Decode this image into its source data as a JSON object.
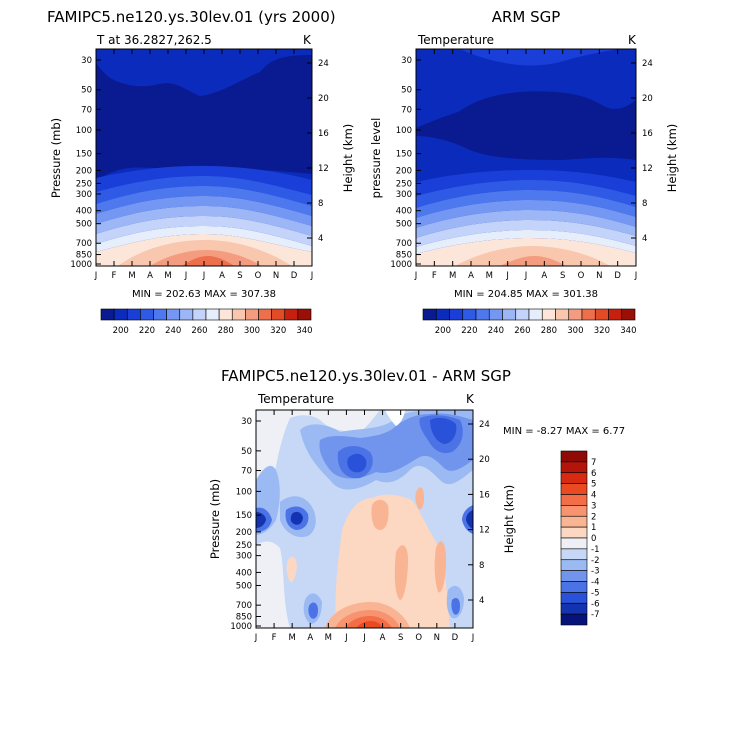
{
  "chart_data": [
    {
      "type": "heatmap",
      "title": "FAMIPC5.ne120.ys.30lev.01 (yrs 2000)",
      "subtitle_left": "T at 36.2827,262.5",
      "subtitle_right": "K",
      "ylabel": "Pressure (mb)",
      "y2label": "Height (km)",
      "x_ticks": [
        "J",
        "F",
        "M",
        "A",
        "M",
        "J",
        "J",
        "A",
        "S",
        "O",
        "N",
        "D",
        "J"
      ],
      "p_ticks": [
        "30",
        "50",
        "70",
        "100",
        "150",
        "200",
        "250",
        "300",
        "400",
        "500",
        "700",
        "850",
        "1000"
      ],
      "p_values": [
        30,
        50,
        70,
        100,
        150,
        200,
        250,
        300,
        400,
        500,
        700,
        850,
        1000
      ],
      "h_ticks": [
        "24",
        "20",
        "16",
        "12",
        "8",
        "4"
      ],
      "min_max": "MIN = 202.63  MAX = 307.38",
      "colorbar": {
        "labels": [
          "200",
          "220",
          "240",
          "260",
          "280",
          "300",
          "320",
          "340"
        ],
        "colors": [
          "#0a1a90",
          "#0b2bbd",
          "#1a3fd8",
          "#2f5ae6",
          "#4d78ee",
          "#7397f2",
          "#9cb6f6",
          "#c3d3fa",
          "#e6eefc",
          "#fce6da",
          "#f9c6ae",
          "#f49c7f",
          "#ee6f4c",
          "#e34a26",
          "#c8200f",
          "#9a1006"
        ]
      }
    },
    {
      "type": "heatmap",
      "title": "ARM SGP",
      "subtitle_left": "Temperature",
      "subtitle_right": "K",
      "ylabel": "pressure level",
      "y2label": "Height (km)",
      "x_ticks": [
        "J",
        "F",
        "M",
        "A",
        "M",
        "J",
        "J",
        "A",
        "S",
        "O",
        "N",
        "D",
        "J"
      ],
      "p_ticks": [
        "30",
        "50",
        "70",
        "100",
        "150",
        "200",
        "250",
        "300",
        "400",
        "500",
        "700",
        "850",
        "1000"
      ],
      "p_values": [
        30,
        50,
        70,
        100,
        150,
        200,
        250,
        300,
        400,
        500,
        700,
        850,
        1000
      ],
      "h_ticks": [
        "24",
        "20",
        "16",
        "12",
        "8",
        "4"
      ],
      "min_max": "MIN = 204.85  MAX = 301.38",
      "colorbar": {
        "labels": [
          "200",
          "220",
          "240",
          "260",
          "280",
          "300",
          "320",
          "340"
        ],
        "colors": [
          "#0a1a90",
          "#0b2bbd",
          "#1a3fd8",
          "#2f5ae6",
          "#4d78ee",
          "#7397f2",
          "#9cb6f6",
          "#c3d3fa",
          "#e6eefc",
          "#fce6da",
          "#f9c6ae",
          "#f49c7f",
          "#ee6f4c",
          "#e34a26",
          "#c8200f",
          "#9a1006"
        ]
      }
    },
    {
      "type": "heatmap",
      "title": "FAMIPC5.ne120.ys.30lev.01 - ARM SGP",
      "subtitle_left": "Temperature",
      "subtitle_right": "K",
      "ylabel": "Pressure (mb)",
      "y2label": "Height (km)",
      "x_ticks": [
        "J",
        "F",
        "M",
        "A",
        "M",
        "J",
        "J",
        "A",
        "S",
        "O",
        "N",
        "D",
        "J"
      ],
      "p_ticks": [
        "30",
        "50",
        "70",
        "100",
        "150",
        "200",
        "250",
        "300",
        "400",
        "500",
        "700",
        "850",
        "1000"
      ],
      "p_values": [
        30,
        50,
        70,
        100,
        150,
        200,
        250,
        300,
        400,
        500,
        700,
        850,
        1000
      ],
      "h_ticks": [
        "24",
        "20",
        "16",
        "12",
        "8",
        "4"
      ],
      "min_max": "MIN =  -8.27 MAX =    6.77",
      "colorbar": {
        "labels": [
          "7",
          "6",
          "5",
          "4",
          "3",
          "2",
          "1",
          "0",
          "-1",
          "-2",
          "-3",
          "-4",
          "-5",
          "-6",
          "-7"
        ],
        "colors": [
          "#8f0a06",
          "#b4150b",
          "#d62a12",
          "#ea4a22",
          "#f36d47",
          "#f7936f",
          "#f9b494",
          "#fcd7c2",
          "#eef0f6",
          "#c6d8f6",
          "#9bb9f2",
          "#7195ec",
          "#4b73e6",
          "#2a52d9",
          "#1433b0",
          "#06137a"
        ]
      }
    }
  ]
}
